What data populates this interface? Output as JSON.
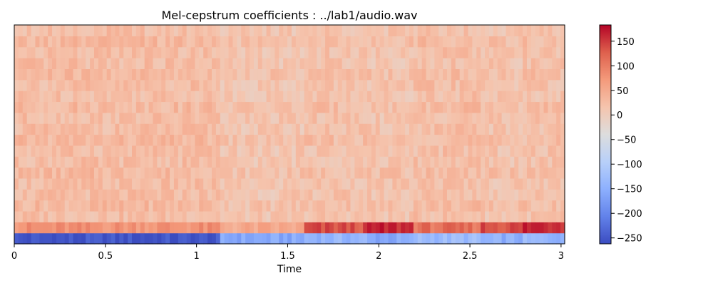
{
  "chart_data": {
    "type": "heatmap",
    "title": "Mel-cepstrum coefficients : ../lab1/audio.wav",
    "xlabel": "Time",
    "ylabel": "",
    "xlim": [
      0,
      3.02
    ],
    "x_ticks": [
      {
        "value": 0,
        "label": "0"
      },
      {
        "value": 0.5,
        "label": "0.5"
      },
      {
        "value": 1,
        "label": "1"
      },
      {
        "value": 1.5,
        "label": "1.5"
      },
      {
        "value": 2,
        "label": "2"
      },
      {
        "value": 2.5,
        "label": "2.5"
      },
      {
        "value": 3,
        "label": "3"
      }
    ],
    "n_coefficients": 20,
    "n_frames": 131,
    "colormap": "coolwarm",
    "colorbar": {
      "vmin": -262,
      "vmax": 183,
      "ticks": [
        {
          "value": 150,
          "label": "150"
        },
        {
          "value": 100,
          "label": "100"
        },
        {
          "value": 50,
          "label": "50"
        },
        {
          "value": 0,
          "label": "0"
        },
        {
          "value": -50,
          "label": "−50"
        },
        {
          "value": -100,
          "label": "−100"
        },
        {
          "value": -150,
          "label": "−150"
        },
        {
          "value": -200,
          "label": "−200"
        },
        {
          "value": -250,
          "label": "−250"
        }
      ]
    },
    "segments": [
      {
        "t_start": 0,
        "t_end": 1.13,
        "c0": -255,
        "c1": 78,
        "upper": 24
      },
      {
        "t_start": 1.13,
        "t_end": 1.6,
        "c0": -160,
        "c1": 50,
        "upper": 12
      },
      {
        "t_start": 1.6,
        "t_end": 1.93,
        "c0": -140,
        "c1": 135,
        "upper": 18
      },
      {
        "t_start": 1.93,
        "t_end": 2.2,
        "c0": -160,
        "c1": 160,
        "upper": 14
      },
      {
        "t_start": 2.2,
        "t_end": 2.55,
        "c0": -130,
        "c1": 110,
        "upper": 22
      },
      {
        "t_start": 2.55,
        "t_end": 2.78,
        "c0": -150,
        "c1": 140,
        "upper": 15
      },
      {
        "t_start": 2.78,
        "t_end": 3.02,
        "c0": -140,
        "c1": 165,
        "upper": 18
      }
    ]
  }
}
